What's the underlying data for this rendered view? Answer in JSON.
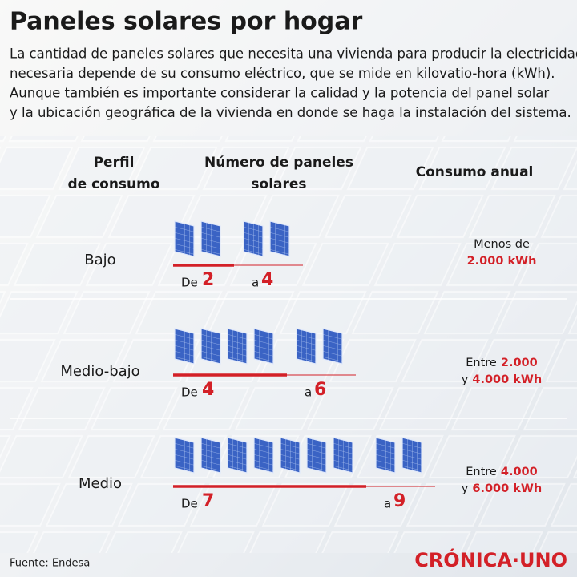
{
  "header": {
    "title": "Paneles solares por hogar",
    "description": [
      "La cantidad de paneles solares que necesita una vivienda para producir la electricidad",
      "necesaria depende de su consumo eléctrico, que se mide en kilovatio-hora (kWh).",
      "Aunque también es importante considerar la calidad y la potencia del panel solar",
      "y la ubicación geográfica de la vivienda en donde se haga la instalación del sistema."
    ]
  },
  "table": {
    "columns": [
      [
        "Perfil",
        "de consumo"
      ],
      [
        "Número de paneles",
        "solares"
      ],
      [
        "Consumo anual"
      ]
    ],
    "rows": [
      {
        "profile": "Bajo",
        "from_label": "De",
        "from": 2,
        "to_label": "a",
        "to": 4,
        "consumption": [
          {
            "plain": "Menos de"
          },
          {
            "red": "2.000 kWh"
          }
        ]
      },
      {
        "profile": "Medio-bajo",
        "from_label": "De",
        "from": 4,
        "to_label": "a",
        "to": 6,
        "consumption": [
          {
            "plain": "Entre",
            "red": "2.000"
          },
          {
            "plain": "y",
            "red": "4.000 kWh"
          }
        ]
      },
      {
        "profile": "Medio",
        "from_label": "De",
        "from": 7,
        "to_label": "a",
        "to": 9,
        "consumption": [
          {
            "plain": "Entre",
            "red": "4.000"
          },
          {
            "plain": "y",
            "red": "6.000 kWh"
          }
        ]
      }
    ]
  },
  "footer": {
    "source": "Fuente: Endesa",
    "logo": "CRÓNICA·UNO"
  }
}
